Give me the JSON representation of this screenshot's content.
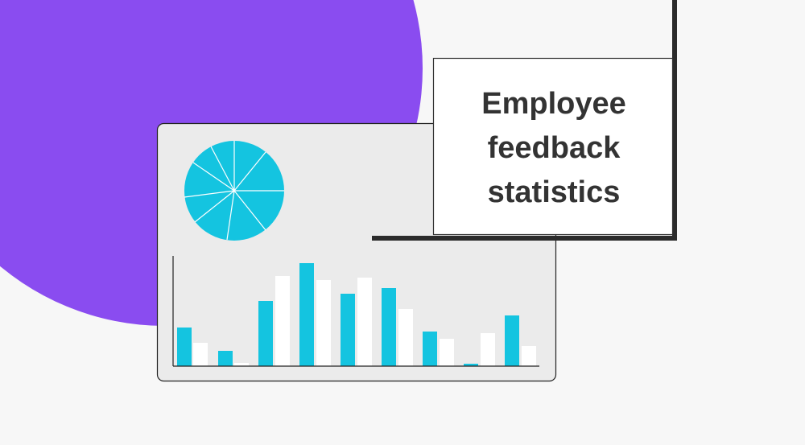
{
  "title": "Employee feedback statistics"
}
